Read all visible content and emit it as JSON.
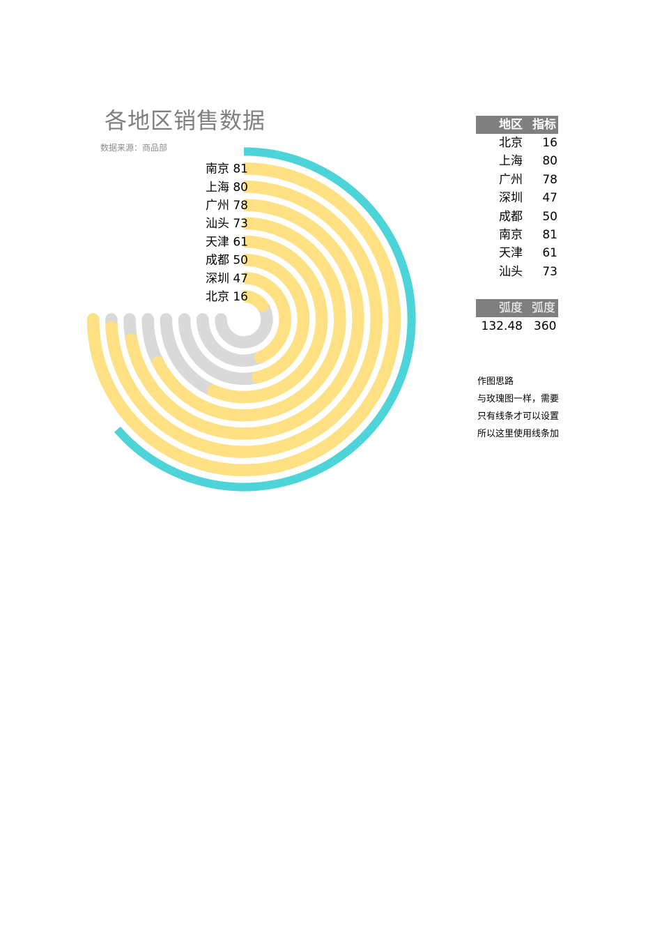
{
  "title": "各地区销售数据",
  "subtitle": "数据来源：商品部",
  "colors": {
    "track": "#d9d9d9",
    "bar": "#ffe082",
    "outer": "#4dd4d8",
    "header_bg": "#7f7f7f",
    "title": "#7f7f7f"
  },
  "chart_data": {
    "type": "radial-bar",
    "title": "各地区销售数据",
    "subtitle": "数据来源：商品部",
    "categories": [
      "南京",
      "上海",
      "广州",
      "汕头",
      "天津",
      "成都",
      "深圳",
      "北京"
    ],
    "values": [
      81,
      80,
      78,
      73,
      61,
      50,
      47,
      16
    ],
    "labels": [
      "南京 81",
      "上海 80",
      "广州 78",
      "汕头 73",
      "天津 61",
      "成都 50",
      "深圳 47",
      "北京 16"
    ],
    "max": 81,
    "sweep_degrees": 270,
    "outer_arc_degrees": 229
  },
  "table1": {
    "headers": [
      "地区",
      "指标"
    ],
    "rows": [
      [
        "北京",
        "16"
      ],
      [
        "上海",
        "80"
      ],
      [
        "广州",
        "78"
      ],
      [
        "深圳",
        "47"
      ],
      [
        "成都",
        "50"
      ],
      [
        "南京",
        "81"
      ],
      [
        "天津",
        "61"
      ],
      [
        "汕头",
        "73"
      ]
    ]
  },
  "table2": {
    "headers": [
      "弧度",
      "弧度"
    ],
    "row": [
      "132.48",
      "360"
    ]
  },
  "notes": {
    "title": "作图思路",
    "lines": [
      "与玫瑰图一样，需要",
      "只有线条才可以设置",
      "所以这里使用线条加"
    ]
  }
}
